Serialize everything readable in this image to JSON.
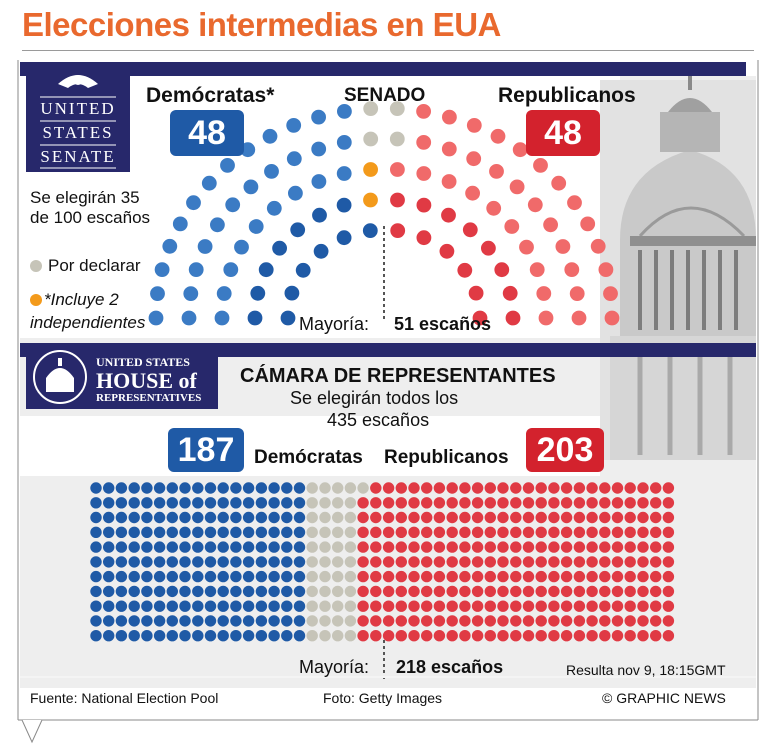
{
  "title": "Elecciones intermedias en EUA",
  "senate_seal": {
    "line1": "UNITED",
    "line2": "STATES",
    "line3": "SENATE"
  },
  "house_seal": {
    "line1": "UNITED STATES",
    "line2": "HOUSE of",
    "line3": "REPRESENTATIVES"
  },
  "senate": {
    "heading": "SENADO",
    "dem_label": "Demócratas*",
    "rep_label": "Republicanos",
    "dem_seats": "48",
    "rep_seats": "48",
    "elect_line1": "Se elegirán 35",
    "elect_line2": "de 100 escaños",
    "majority_label": "Mayoría:",
    "majority_value": "51 escaños"
  },
  "legend": {
    "pending": "Por declarar",
    "independents_line1": "*Incluye 2",
    "independents_line2": "independientes"
  },
  "house": {
    "heading": "CÁMARA DE REPRESENTANTES",
    "elect_line1": "Se elegirán todos los",
    "elect_line2": "435 escaños",
    "dem_label": "Demócratas",
    "rep_label": "Republicanos",
    "dem_seats": "187",
    "rep_seats": "203",
    "majority_label": "Mayoría:",
    "majority_value": "218 escaños"
  },
  "timestamp": "Resulta nov 9, 18:15GMT",
  "footer": {
    "source": "Fuente: National Election Pool",
    "photo": "Foto: Getty Images",
    "publisher": "© GRAPHIC NEWS"
  },
  "colors": {
    "dem_held": "#1f5aa6",
    "dem_new": "#3b7bc4",
    "independent": "#f39a1b",
    "pending": "#c6c4b8",
    "rep_held": "#e03a44",
    "rep_new": "#f06a6a",
    "title": "#e9692e",
    "band": "#27286b"
  },
  "chart_data": [
    {
      "type": "hemicycle",
      "name": "SENADO",
      "total": 100,
      "majority": 51,
      "segments": [
        {
          "party": "Demócratas",
          "seats": 46
        },
        {
          "party": "Independientes",
          "seats": 2
        },
        {
          "party": "Por declarar",
          "seats": 4
        },
        {
          "party": "Republicanos",
          "seats": 48
        }
      ]
    },
    {
      "type": "seat-grid",
      "name": "CÁMARA DE REPRESENTANTES",
      "total": 435,
      "majority": 218,
      "segments": [
        {
          "party": "Demócratas",
          "seats": 187
        },
        {
          "party": "Por declarar",
          "seats": 45
        },
        {
          "party": "Republicanos",
          "seats": 203
        }
      ]
    }
  ]
}
